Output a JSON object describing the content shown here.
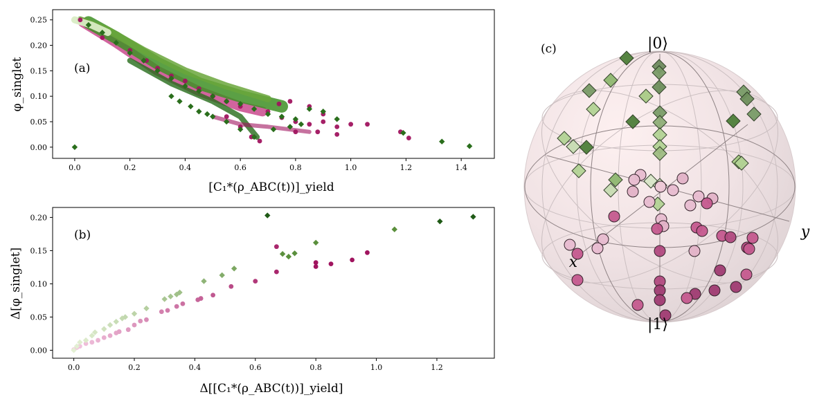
{
  "chart_data": [
    {
      "type": "scatter",
      "panel_label": "(a)",
      "xlabel": "[C₁*(ρ_ABC(t))]_yield",
      "ylabel": "φ_singlet",
      "xlim": [
        -0.08,
        1.52
      ],
      "ylim": [
        -0.022,
        0.27
      ],
      "xticks": [
        "0.0",
        "0.2",
        "0.4",
        "0.6",
        "0.8",
        "1.0",
        "1.2",
        "1.4"
      ],
      "yticks": [
        "0.00",
        "0.05",
        "0.10",
        "0.15",
        "0.20",
        "0.25"
      ],
      "series": [
        {
          "name": "pink",
          "marker": "circle",
          "color": "#a0145f",
          "points": [
            [
              0.02,
              0.25
            ],
            [
              0.1,
              0.215
            ],
            [
              0.2,
              0.19
            ],
            [
              0.26,
              0.17
            ],
            [
              0.3,
              0.155
            ],
            [
              0.35,
              0.14
            ],
            [
              0.4,
              0.13
            ],
            [
              0.45,
              0.115
            ],
            [
              0.5,
              0.1
            ],
            [
              0.55,
              0.09
            ],
            [
              0.6,
              0.08
            ],
            [
              0.55,
              0.06
            ],
            [
              0.6,
              0.04
            ],
            [
              0.64,
              0.02
            ],
            [
              0.67,
              0.012
            ],
            [
              0.7,
              0.07
            ],
            [
              0.75,
              0.058
            ],
            [
              0.8,
              0.05
            ],
            [
              0.85,
              0.045
            ],
            [
              0.9,
              0.05
            ],
            [
              0.95,
              0.04
            ],
            [
              1.0,
              0.045
            ],
            [
              1.06,
              0.045
            ],
            [
              1.18,
              0.03
            ],
            [
              1.21,
              0.018
            ],
            [
              0.8,
              0.03
            ],
            [
              0.88,
              0.03
            ],
            [
              0.95,
              0.025
            ],
            [
              0.74,
              0.085
            ],
            [
              0.78,
              0.09
            ],
            [
              0.85,
              0.08
            ],
            [
              0.9,
              0.065
            ]
          ]
        },
        {
          "name": "green",
          "marker": "diamond",
          "color": "#2a7a1c",
          "points": [
            [
              0.0,
              0.0
            ],
            [
              0.05,
              0.24
            ],
            [
              0.1,
              0.225
            ],
            [
              0.15,
              0.205
            ],
            [
              0.2,
              0.185
            ],
            [
              0.25,
              0.17
            ],
            [
              0.3,
              0.15
            ],
            [
              0.35,
              0.135
            ],
            [
              0.4,
              0.12
            ],
            [
              0.45,
              0.11
            ],
            [
              0.5,
              0.1
            ],
            [
              0.55,
              0.09
            ],
            [
              0.6,
              0.085
            ],
            [
              0.65,
              0.075
            ],
            [
              0.7,
              0.065
            ],
            [
              0.75,
              0.06
            ],
            [
              0.8,
              0.055
            ],
            [
              0.85,
              0.075
            ],
            [
              0.9,
              0.07
            ],
            [
              0.95,
              0.055
            ],
            [
              0.5,
              0.06
            ],
            [
              0.55,
              0.05
            ],
            [
              0.6,
              0.035
            ],
            [
              0.65,
              0.02
            ],
            [
              0.72,
              0.035
            ],
            [
              0.78,
              0.04
            ],
            [
              0.82,
              0.045
            ],
            [
              1.19,
              0.028
            ],
            [
              1.33,
              0.011
            ],
            [
              1.43,
              0.002
            ],
            [
              0.35,
              0.1
            ],
            [
              0.38,
              0.09
            ],
            [
              0.42,
              0.08
            ],
            [
              0.45,
              0.07
            ],
            [
              0.48,
              0.065
            ]
          ]
        }
      ]
    },
    {
      "type": "scatter",
      "panel_label": "(b)",
      "xlabel": "Δ[[C₁*(ρ_ABC(t))]_yield]",
      "ylabel": "Δ[φ_singlet]",
      "xlim": [
        -0.07,
        1.39
      ],
      "ylim": [
        -0.012,
        0.215
      ],
      "xticks": [
        "0.0",
        "0.2",
        "0.4",
        "0.6",
        "0.8",
        "1.0",
        "1.2"
      ],
      "yticks": [
        "0.00",
        "0.05",
        "0.10",
        "0.15",
        "0.20"
      ],
      "series": [
        {
          "name": "pink",
          "marker": "circle",
          "points": [
            [
              0.0,
              0.001
            ],
            [
              0.01,
              0.004
            ],
            [
              0.02,
              0.006
            ],
            [
              0.04,
              0.01
            ],
            [
              0.06,
              0.012
            ],
            [
              0.08,
              0.015
            ],
            [
              0.1,
              0.019
            ],
            [
              0.12,
              0.022
            ],
            [
              0.14,
              0.026
            ],
            [
              0.15,
              0.028
            ],
            [
              0.18,
              0.031
            ],
            [
              0.2,
              0.038
            ],
            [
              0.22,
              0.044
            ],
            [
              0.24,
              0.046
            ],
            [
              0.29,
              0.058
            ],
            [
              0.31,
              0.06
            ],
            [
              0.34,
              0.066
            ],
            [
              0.36,
              0.07
            ],
            [
              0.41,
              0.076
            ],
            [
              0.42,
              0.078
            ],
            [
              0.46,
              0.083
            ],
            [
              0.52,
              0.096
            ],
            [
              0.6,
              0.104
            ],
            [
              0.67,
              0.118
            ],
            [
              0.67,
              0.156
            ],
            [
              0.8,
              0.132
            ],
            [
              0.8,
              0.126
            ],
            [
              0.85,
              0.13
            ],
            [
              0.92,
              0.136
            ],
            [
              0.97,
              0.147
            ]
          ]
        },
        {
          "name": "green",
          "marker": "diamond",
          "points": [
            [
              0.0,
              0.0
            ],
            [
              0.01,
              0.006
            ],
            [
              0.02,
              0.012
            ],
            [
              0.04,
              0.015
            ],
            [
              0.06,
              0.022
            ],
            [
              0.07,
              0.027
            ],
            [
              0.1,
              0.032
            ],
            [
              0.12,
              0.038
            ],
            [
              0.14,
              0.043
            ],
            [
              0.16,
              0.048
            ],
            [
              0.17,
              0.05
            ],
            [
              0.2,
              0.055
            ],
            [
              0.24,
              0.063
            ],
            [
              0.3,
              0.077
            ],
            [
              0.32,
              0.081
            ],
            [
              0.34,
              0.084
            ],
            [
              0.35,
              0.087
            ],
            [
              0.43,
              0.104
            ],
            [
              0.49,
              0.113
            ],
            [
              0.53,
              0.123
            ],
            [
              0.64,
              0.203
            ],
            [
              0.69,
              0.145
            ],
            [
              0.71,
              0.141
            ],
            [
              0.73,
              0.146
            ],
            [
              0.8,
              0.162
            ],
            [
              1.06,
              0.182
            ],
            [
              1.21,
              0.194
            ],
            [
              1.32,
              0.201
            ]
          ]
        }
      ]
    },
    {
      "type": "bloch-sphere",
      "panel_label": "(c)",
      "labels": {
        "top": "|0⟩",
        "bottom": "|1⟩",
        "x": "x",
        "y": "y"
      }
    }
  ]
}
